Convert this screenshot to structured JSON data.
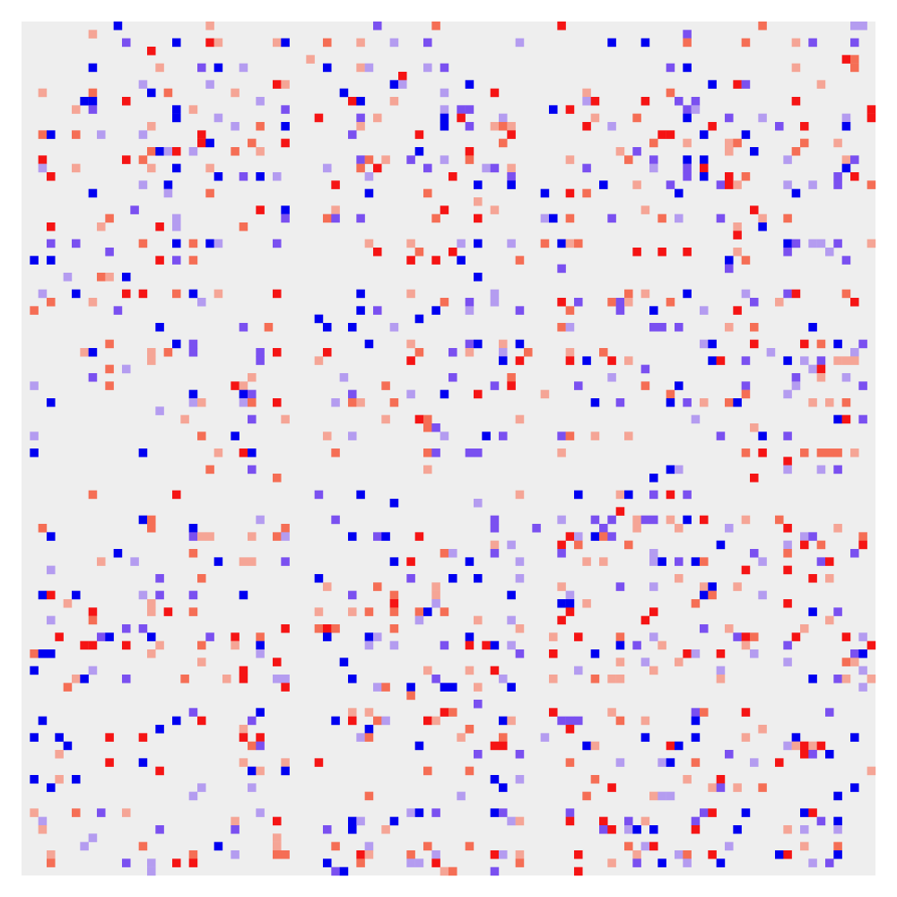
{
  "chart_data": {
    "type": "heatmap",
    "title": "",
    "xlabel": "",
    "ylabel": "",
    "grid": false,
    "colorbar": false,
    "rows": 102,
    "cols": 102,
    "value_range": [
      -3,
      3
    ],
    "zero_value": 0,
    "density": 0.12,
    "seed": 20240917,
    "colormap": {
      "-3": "#0000f0",
      "-2": "#7a50f0",
      "-1": "#b49cf0",
      "0": "#eeeeee",
      "1": "#f5a596",
      "2": "#f56e55",
      "3": "#f51414"
    },
    "background_color": "#eeeeee",
    "page_background": "#ffffff"
  }
}
